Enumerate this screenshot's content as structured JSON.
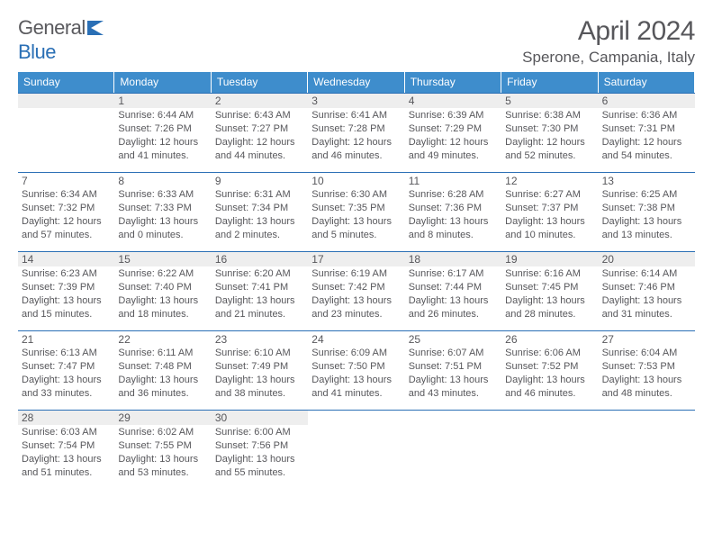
{
  "brand": {
    "part1": "General",
    "part2": "Blue"
  },
  "title": "April 2024",
  "location": "Sperone, Campania, Italy",
  "dow": [
    "Sunday",
    "Monday",
    "Tuesday",
    "Wednesday",
    "Thursday",
    "Friday",
    "Saturday"
  ],
  "colors": {
    "header_bg": "#3e8dcc",
    "header_fg": "#ffffff",
    "rule": "#2a6fb5",
    "text": "#57575b",
    "shaded_bg": "#eeeeee",
    "logo_blue": "#2a6fb5"
  },
  "leading_blanks": 1,
  "days": [
    {
      "n": 1,
      "sunrise": "Sunrise: 6:44 AM",
      "sunset": "Sunset: 7:26 PM",
      "daylight": "Daylight: 12 hours and 41 minutes."
    },
    {
      "n": 2,
      "sunrise": "Sunrise: 6:43 AM",
      "sunset": "Sunset: 7:27 PM",
      "daylight": "Daylight: 12 hours and 44 minutes."
    },
    {
      "n": 3,
      "sunrise": "Sunrise: 6:41 AM",
      "sunset": "Sunset: 7:28 PM",
      "daylight": "Daylight: 12 hours and 46 minutes."
    },
    {
      "n": 4,
      "sunrise": "Sunrise: 6:39 AM",
      "sunset": "Sunset: 7:29 PM",
      "daylight": "Daylight: 12 hours and 49 minutes."
    },
    {
      "n": 5,
      "sunrise": "Sunrise: 6:38 AM",
      "sunset": "Sunset: 7:30 PM",
      "daylight": "Daylight: 12 hours and 52 minutes."
    },
    {
      "n": 6,
      "sunrise": "Sunrise: 6:36 AM",
      "sunset": "Sunset: 7:31 PM",
      "daylight": "Daylight: 12 hours and 54 minutes."
    },
    {
      "n": 7,
      "sunrise": "Sunrise: 6:34 AM",
      "sunset": "Sunset: 7:32 PM",
      "daylight": "Daylight: 12 hours and 57 minutes."
    },
    {
      "n": 8,
      "sunrise": "Sunrise: 6:33 AM",
      "sunset": "Sunset: 7:33 PM",
      "daylight": "Daylight: 13 hours and 0 minutes."
    },
    {
      "n": 9,
      "sunrise": "Sunrise: 6:31 AM",
      "sunset": "Sunset: 7:34 PM",
      "daylight": "Daylight: 13 hours and 2 minutes."
    },
    {
      "n": 10,
      "sunrise": "Sunrise: 6:30 AM",
      "sunset": "Sunset: 7:35 PM",
      "daylight": "Daylight: 13 hours and 5 minutes."
    },
    {
      "n": 11,
      "sunrise": "Sunrise: 6:28 AM",
      "sunset": "Sunset: 7:36 PM",
      "daylight": "Daylight: 13 hours and 8 minutes."
    },
    {
      "n": 12,
      "sunrise": "Sunrise: 6:27 AM",
      "sunset": "Sunset: 7:37 PM",
      "daylight": "Daylight: 13 hours and 10 minutes."
    },
    {
      "n": 13,
      "sunrise": "Sunrise: 6:25 AM",
      "sunset": "Sunset: 7:38 PM",
      "daylight": "Daylight: 13 hours and 13 minutes."
    },
    {
      "n": 14,
      "sunrise": "Sunrise: 6:23 AM",
      "sunset": "Sunset: 7:39 PM",
      "daylight": "Daylight: 13 hours and 15 minutes."
    },
    {
      "n": 15,
      "sunrise": "Sunrise: 6:22 AM",
      "sunset": "Sunset: 7:40 PM",
      "daylight": "Daylight: 13 hours and 18 minutes."
    },
    {
      "n": 16,
      "sunrise": "Sunrise: 6:20 AM",
      "sunset": "Sunset: 7:41 PM",
      "daylight": "Daylight: 13 hours and 21 minutes."
    },
    {
      "n": 17,
      "sunrise": "Sunrise: 6:19 AM",
      "sunset": "Sunset: 7:42 PM",
      "daylight": "Daylight: 13 hours and 23 minutes."
    },
    {
      "n": 18,
      "sunrise": "Sunrise: 6:17 AM",
      "sunset": "Sunset: 7:44 PM",
      "daylight": "Daylight: 13 hours and 26 minutes."
    },
    {
      "n": 19,
      "sunrise": "Sunrise: 6:16 AM",
      "sunset": "Sunset: 7:45 PM",
      "daylight": "Daylight: 13 hours and 28 minutes."
    },
    {
      "n": 20,
      "sunrise": "Sunrise: 6:14 AM",
      "sunset": "Sunset: 7:46 PM",
      "daylight": "Daylight: 13 hours and 31 minutes."
    },
    {
      "n": 21,
      "sunrise": "Sunrise: 6:13 AM",
      "sunset": "Sunset: 7:47 PM",
      "daylight": "Daylight: 13 hours and 33 minutes."
    },
    {
      "n": 22,
      "sunrise": "Sunrise: 6:11 AM",
      "sunset": "Sunset: 7:48 PM",
      "daylight": "Daylight: 13 hours and 36 minutes."
    },
    {
      "n": 23,
      "sunrise": "Sunrise: 6:10 AM",
      "sunset": "Sunset: 7:49 PM",
      "daylight": "Daylight: 13 hours and 38 minutes."
    },
    {
      "n": 24,
      "sunrise": "Sunrise: 6:09 AM",
      "sunset": "Sunset: 7:50 PM",
      "daylight": "Daylight: 13 hours and 41 minutes."
    },
    {
      "n": 25,
      "sunrise": "Sunrise: 6:07 AM",
      "sunset": "Sunset: 7:51 PM",
      "daylight": "Daylight: 13 hours and 43 minutes."
    },
    {
      "n": 26,
      "sunrise": "Sunrise: 6:06 AM",
      "sunset": "Sunset: 7:52 PM",
      "daylight": "Daylight: 13 hours and 46 minutes."
    },
    {
      "n": 27,
      "sunrise": "Sunrise: 6:04 AM",
      "sunset": "Sunset: 7:53 PM",
      "daylight": "Daylight: 13 hours and 48 minutes."
    },
    {
      "n": 28,
      "sunrise": "Sunrise: 6:03 AM",
      "sunset": "Sunset: 7:54 PM",
      "daylight": "Daylight: 13 hours and 51 minutes."
    },
    {
      "n": 29,
      "sunrise": "Sunrise: 6:02 AM",
      "sunset": "Sunset: 7:55 PM",
      "daylight": "Daylight: 13 hours and 53 minutes."
    },
    {
      "n": 30,
      "sunrise": "Sunrise: 6:00 AM",
      "sunset": "Sunset: 7:56 PM",
      "daylight": "Daylight: 13 hours and 55 minutes."
    }
  ]
}
